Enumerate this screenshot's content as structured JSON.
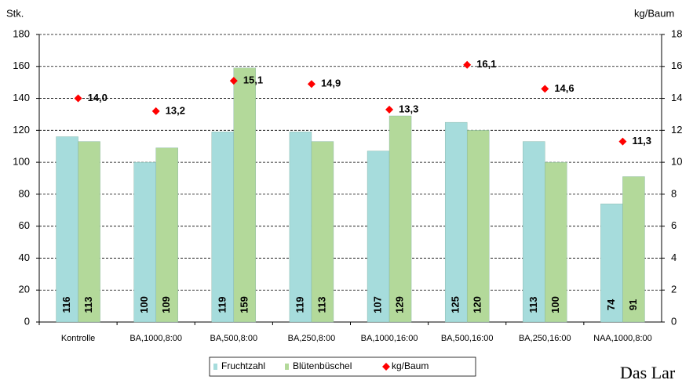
{
  "chart_data": {
    "type": "bar",
    "y_label": "Stk.",
    "y2_label": "kg/Baum",
    "categories": [
      "Kontrolle",
      "BA,1000,8:00",
      "BA,500,8:00",
      "BA,250,8:00",
      "BA,1000,16:00",
      "BA,500,16:00",
      "BA,250,16:00",
      "NAA,1000,8:00"
    ],
    "series": [
      {
        "name": "Fruchtzahl",
        "color": "#a6dcdc",
        "values": [
          116,
          100,
          119,
          119,
          107,
          125,
          113,
          74
        ]
      },
      {
        "name": "Blütenbüschel",
        "color": "#b3d99a",
        "values": [
          113,
          109,
          159,
          113,
          129,
          120,
          100,
          91
        ]
      },
      {
        "name": "kg/Baum",
        "type": "scatter",
        "axis": "y2",
        "color": "#ff0000",
        "values": [
          14.0,
          13.2,
          15.1,
          14.9,
          13.3,
          16.1,
          14.6,
          11.3
        ],
        "value_labels": [
          "14,0",
          "13,2",
          "15,1",
          "14,9",
          "13,3",
          "16,1",
          "14,6",
          "11,3"
        ]
      }
    ],
    "ylim": [
      0,
      180
    ],
    "yticks": [
      0,
      20,
      40,
      60,
      80,
      100,
      120,
      140,
      160,
      180
    ],
    "y2lim": [
      0,
      18
    ],
    "y2ticks": [
      0,
      2,
      4,
      6,
      8,
      10,
      12,
      14,
      16,
      18
    ],
    "grid": true,
    "legend": "bottom",
    "annotations": [
      "Das Lar"
    ]
  }
}
